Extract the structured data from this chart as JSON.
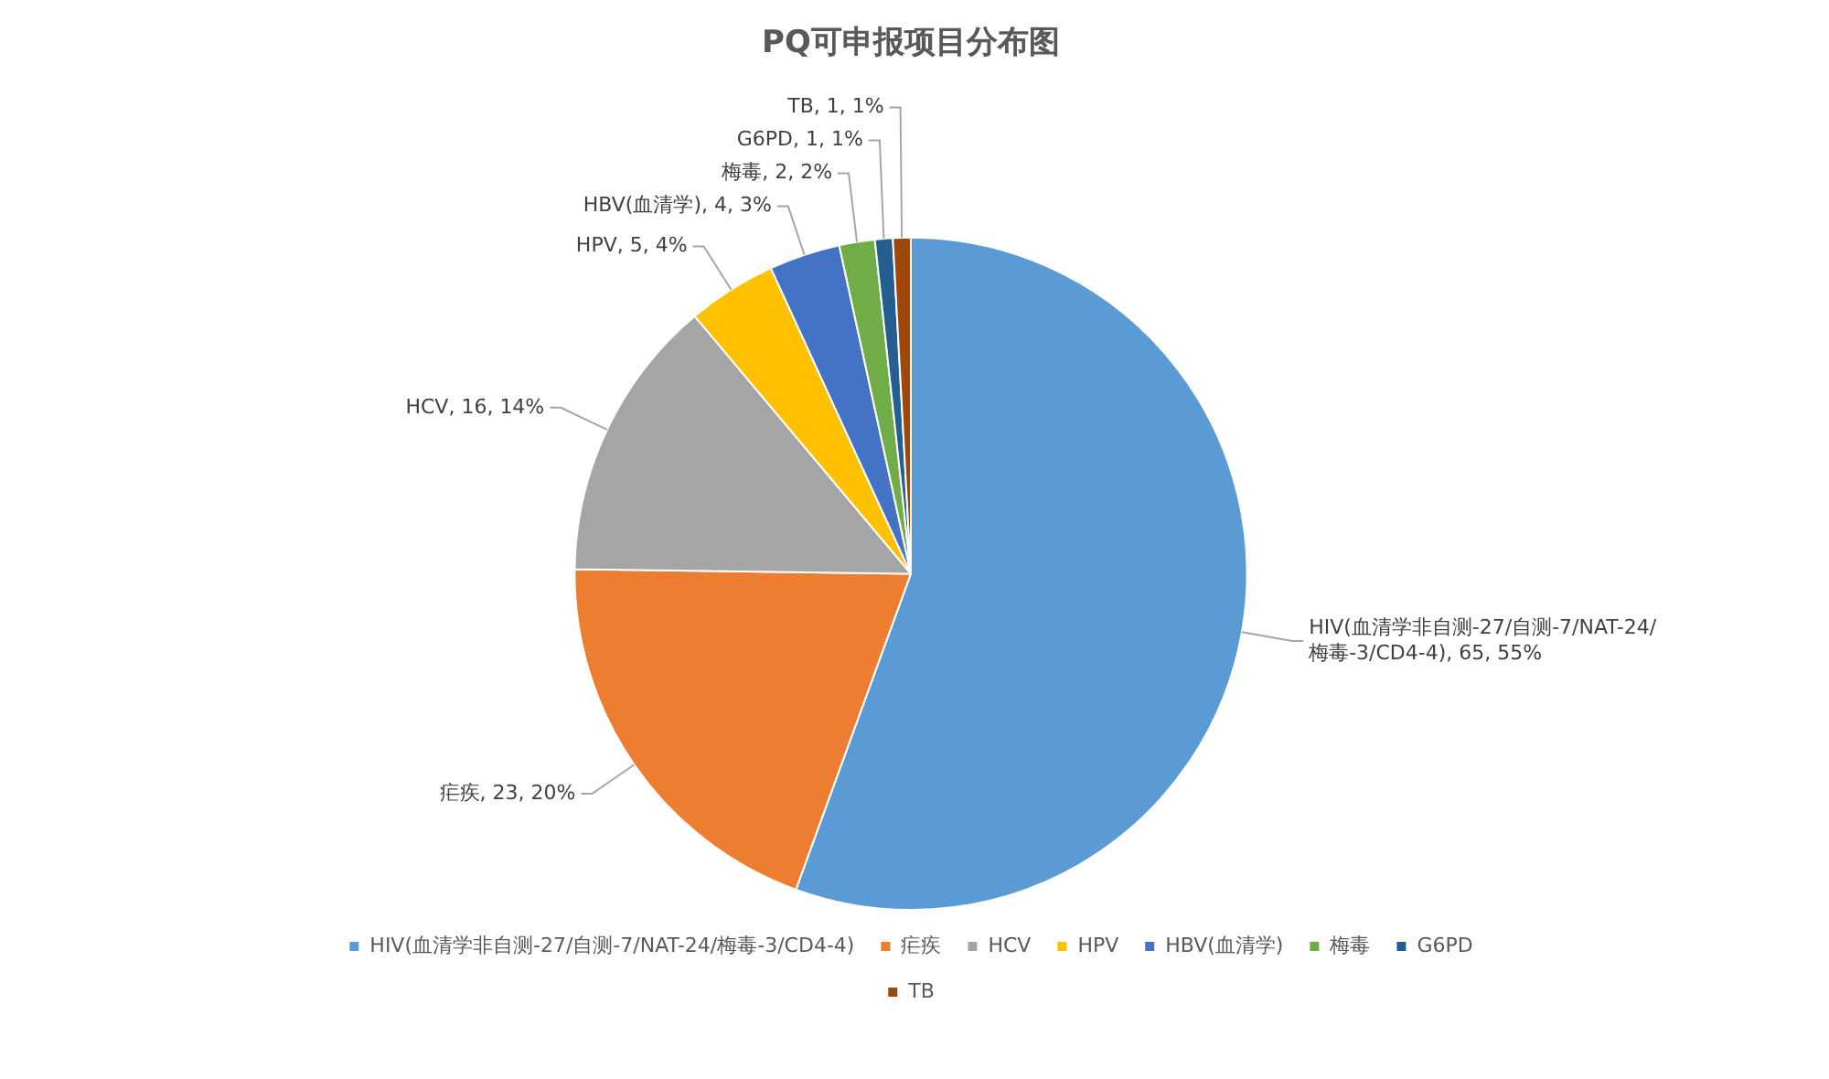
{
  "chart_data": {
    "type": "pie",
    "title": "PQ可申报项目分布图",
    "categories": [
      "HIV(血清学非自测-27/自测-7/NAT-24/梅毒-3/CD4-4)",
      "疟疾",
      "HCV",
      "HPV",
      "HBV(血清学)",
      "梅毒",
      "G6PD",
      "TB"
    ],
    "values": [
      65,
      23,
      16,
      5,
      4,
      2,
      1,
      1
    ],
    "colors": [
      "#5b9bd5",
      "#ed7d31",
      "#a5a5a5",
      "#ffc000",
      "#4472c4",
      "#70ad47",
      "#255e91",
      "#9e480e"
    ],
    "value_labels": [
      "HIV(血清学非自测-27/自测-7/NAT-24/梅毒-3/CD4-4), 65, 55%",
      "疟疾, 23, 20%",
      "HCV, 16, 14%",
      "HPV, 5, 4%",
      "HBV(血清学), 4, 3%",
      "梅毒, 2, 2%",
      "G6PD, 1, 1%",
      "TB, 1, 1%"
    ],
    "legend": "bottom"
  }
}
